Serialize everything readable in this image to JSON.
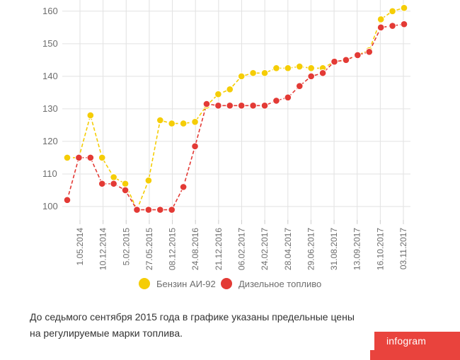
{
  "chart_data": {
    "type": "line",
    "ylim": [
      95,
      163
    ],
    "yticks": [
      100,
      110,
      120,
      130,
      140,
      150,
      160
    ],
    "xtick_labels": [
      "1.05.2014",
      "10.12.2014",
      "5.02.2015",
      "27.05.2015",
      "08.12.2015",
      "24.08.2016",
      "21.12.2016",
      "06.02.2017",
      "24.02.2017",
      "28.04.2017",
      "29.06.2017",
      "31.08.2017",
      "13.09.2017",
      "16.10.2017",
      "03.11.2017"
    ],
    "grid": true,
    "legend_placement": "bottom-center",
    "series": [
      {
        "name": "Бензин АИ-92",
        "color": "#f5cd06",
        "values": [
          115,
          115,
          128,
          115,
          109,
          107,
          99,
          108,
          126.5,
          125.5,
          125.5,
          126,
          131,
          134.5,
          136,
          140,
          141,
          141,
          142.5,
          142.5,
          143,
          142.5,
          142.5,
          144.5,
          145,
          146.5,
          148,
          157.5,
          160,
          161
        ]
      },
      {
        "name": "Дизельное топливо",
        "color": "#e33a35",
        "values": [
          102,
          115,
          115,
          107,
          107,
          105,
          99,
          99,
          99,
          99,
          106,
          118.5,
          131.5,
          131,
          131,
          131,
          131,
          131,
          132.5,
          133.5,
          137,
          140,
          141,
          144.5,
          145,
          146.5,
          147.5,
          155,
          155.5,
          156
        ]
      }
    ]
  },
  "note": {
    "line1": "До седьмого сентября 2015 года в графике указаны предельные цены",
    "line2": "на регулируемые марки топлива."
  },
  "brand": {
    "text": "infogram",
    "color": "#e9433d"
  }
}
